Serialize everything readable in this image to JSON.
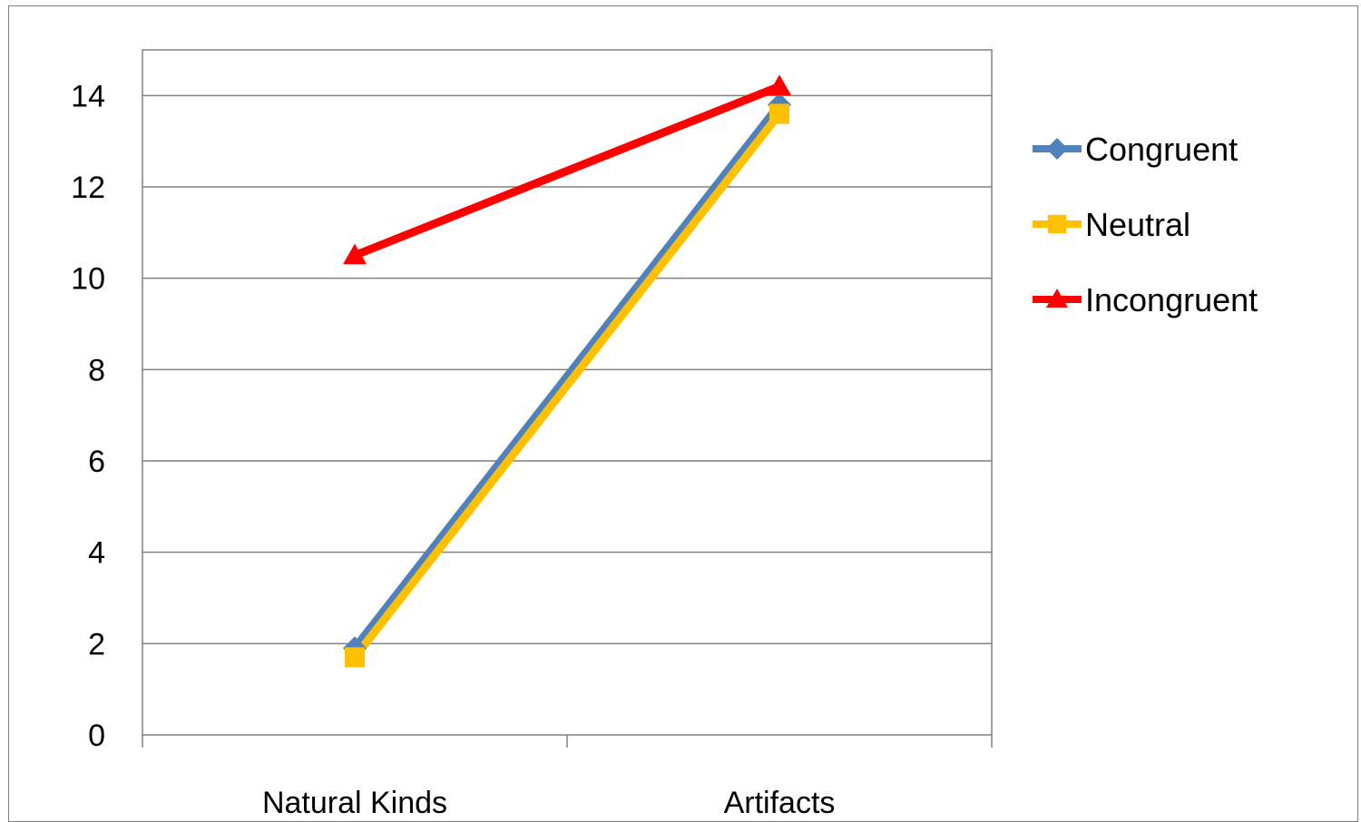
{
  "chart_data": {
    "type": "line",
    "categories": [
      "Natural Kinds",
      "Artifacts"
    ],
    "series": [
      {
        "name": "Congruent",
        "values": [
          1.9,
          13.8
        ],
        "color": "#4F81BD",
        "marker": "diamond"
      },
      {
        "name": "Neutral",
        "values": [
          1.7,
          13.6
        ],
        "color": "#FFC000",
        "marker": "square"
      },
      {
        "name": "Incongruent",
        "values": [
          10.5,
          14.2
        ],
        "color": "#FF0000",
        "marker": "triangle"
      }
    ],
    "ylim": [
      0,
      15
    ],
    "yticks": [
      0,
      2,
      4,
      6,
      8,
      10,
      12,
      14
    ],
    "grid": true,
    "legend": "right",
    "title": "",
    "xlabel": "",
    "ylabel": ""
  }
}
